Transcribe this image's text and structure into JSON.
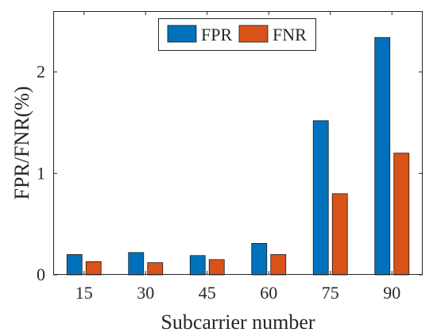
{
  "chart_data": {
    "type": "bar",
    "categories": [
      "15",
      "30",
      "45",
      "60",
      "75",
      "90"
    ],
    "series": [
      {
        "name": "FPR",
        "color": "#0072BD",
        "values": [
          0.2,
          0.22,
          0.19,
          0.31,
          1.52,
          2.34
        ]
      },
      {
        "name": "FNR",
        "color": "#D95319",
        "values": [
          0.13,
          0.12,
          0.15,
          0.2,
          0.8,
          1.2
        ]
      }
    ],
    "xlabel": "Subcarrier number",
    "ylabel": "FPR/FNR(%)",
    "ylim": [
      0,
      2.6
    ],
    "yticks": [
      0,
      1,
      2
    ],
    "ytick_labels": [
      "0",
      "1",
      "2"
    ],
    "grid": false,
    "legend": "top-center"
  }
}
